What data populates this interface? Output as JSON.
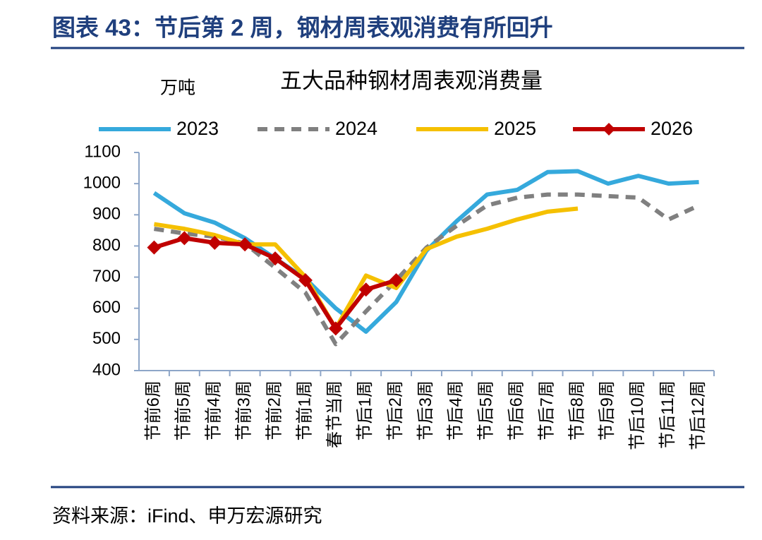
{
  "figure_title": "图表 43：节后第 2 周，钢材周表观消费有所回升",
  "source": "资料来源：iFind、申万宏源研究",
  "chart_data": {
    "type": "line",
    "title": "五大品种钢材周表观消费量",
    "y_unit": "万吨",
    "categories": [
      "节前6周",
      "节前5周",
      "节前4周",
      "节前3周",
      "节前2周",
      "节前1周",
      "春节当周",
      "节后1周",
      "节后2周",
      "节后3周",
      "节后4周",
      "节后5周",
      "节后6周",
      "节后7周",
      "节后8周",
      "节后9周",
      "节后10周",
      "节后11周",
      "节后12周"
    ],
    "series": [
      {
        "name": "2023",
        "color": "#35a9dc",
        "values": [
          970,
          905,
          875,
          825,
          760,
          695,
          600,
          525,
          620,
          785,
          880,
          965,
          980,
          1037,
          1040,
          1000,
          1025,
          1000,
          1005
        ]
      },
      {
        "name": "2024",
        "color": "#808080",
        "dash": true,
        "values": [
          855,
          840,
          830,
          808,
          730,
          650,
          485,
          590,
          690,
          795,
          865,
          930,
          955,
          965,
          965,
          960,
          955,
          885,
          930
        ]
      },
      {
        "name": "2025",
        "color": "#f5c000",
        "values": [
          870,
          855,
          835,
          805,
          805,
          700,
          535,
          705,
          665,
          790,
          830,
          855,
          885,
          910,
          920,
          null,
          null,
          null,
          null
        ]
      },
      {
        "name": "2026",
        "color": "#c00000",
        "marker": "diamond",
        "values": [
          795,
          825,
          810,
          805,
          760,
          690,
          535,
          660,
          690,
          null,
          null,
          null,
          null,
          null,
          null,
          null,
          null,
          null,
          null
        ]
      }
    ],
    "ylim": [
      400,
      1100
    ],
    "yticks": [
      400,
      500,
      600,
      700,
      800,
      900,
      1000,
      1100
    ],
    "legend": "top"
  }
}
